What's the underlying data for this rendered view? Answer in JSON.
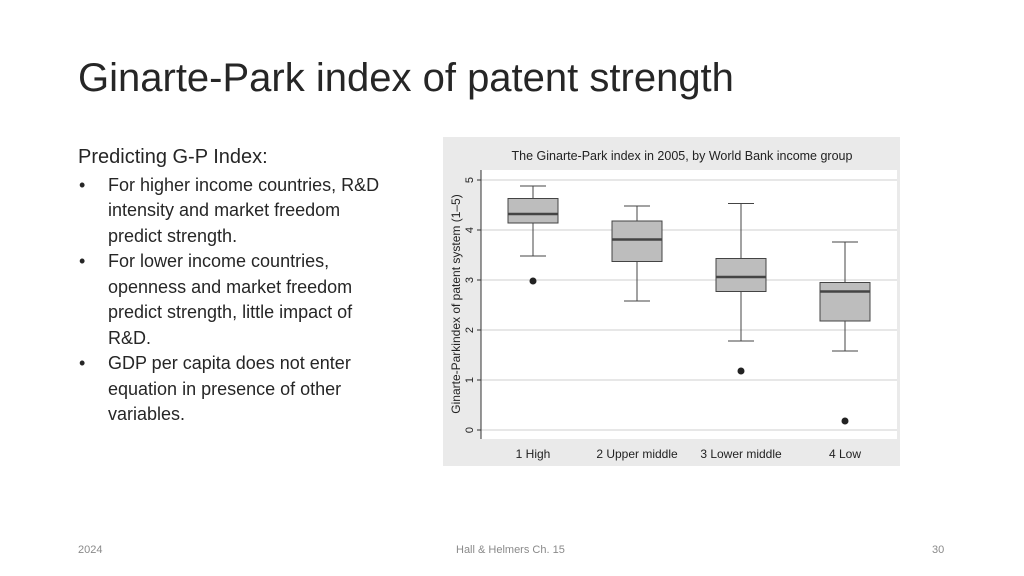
{
  "slide": {
    "title": "Ginarte-Park index of patent strength",
    "heading": "Predicting G-P Index:",
    "bullets": [
      "For higher income countries, R&D intensity and market freedom predict strength.",
      "For lower income countries, openness and market freedom predict strength, little impact of R&D.",
      "GDP per capita does not enter equation in presence of other variables."
    ],
    "bullet_symbol": "•"
  },
  "footer": {
    "year": "2024",
    "source": "Hall & Helmers Ch. 15",
    "page": "30"
  },
  "chart_data": {
    "type": "box",
    "title": "The Ginarte-Park index in 2005, by World Bank income group",
    "xlabel": "",
    "ylabel": "Ginarte-Parkindex of patent system (1–5)",
    "ylim": [
      0,
      5
    ],
    "yticks": [
      0,
      1,
      2,
      3,
      4,
      5
    ],
    "grid": true,
    "box_color": "#bdbdbd",
    "background_color": "#eaeaea",
    "categories": [
      "1 High",
      "2 Upper middle",
      "3 Lower middle",
      "4 Low"
    ],
    "boxes": [
      {
        "whisker_low": 3.48,
        "q1": 4.14,
        "median": 4.32,
        "q3": 4.63,
        "whisker_high": 4.88,
        "outliers": [
          2.98
        ]
      },
      {
        "whisker_low": 2.58,
        "q1": 3.37,
        "median": 3.81,
        "q3": 4.18,
        "whisker_high": 4.48,
        "outliers": []
      },
      {
        "whisker_low": 1.78,
        "q1": 2.77,
        "median": 3.06,
        "q3": 3.43,
        "whisker_high": 4.53,
        "outliers": [
          1.18
        ]
      },
      {
        "whisker_low": 1.58,
        "q1": 2.18,
        "median": 2.77,
        "q3": 2.95,
        "whisker_high": 3.76,
        "outliers": [
          0.18
        ]
      }
    ]
  }
}
